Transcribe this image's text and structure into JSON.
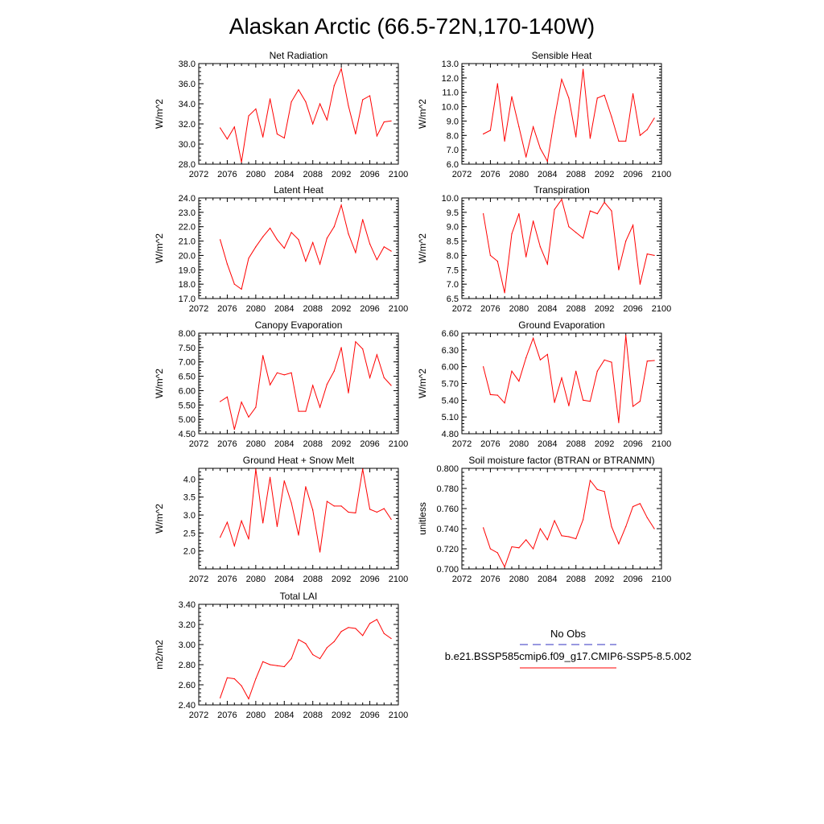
{
  "title": "Alaskan Arctic (66.5-72N,170-140W)",
  "legend": {
    "entries": [
      {
        "label": "No Obs",
        "color": "#3030c0",
        "dash": true
      },
      {
        "label": "b.e21.BSSP585cmip6.f09_g17.CMIP6-SSP5-8.5.002",
        "color": "#ff0000",
        "dash": false
      }
    ]
  },
  "chart_data": [
    {
      "type": "line",
      "title": "Net Radiation",
      "ylabel": "W/m^2",
      "xlim": [
        2072,
        2100
      ],
      "xticks": [
        "2072",
        "2076",
        "2080",
        "2084",
        "2088",
        "2092",
        "2096",
        "2100"
      ],
      "ylim": [
        28.0,
        38.0
      ],
      "yticks": [
        "28.0",
        "30.0",
        "32.0",
        "34.0",
        "36.0",
        "38.0"
      ],
      "color": "#ff0000",
      "x": [
        2075,
        2076,
        2077,
        2078,
        2079,
        2080,
        2081,
        2082,
        2083,
        2084,
        2085,
        2086,
        2087,
        2088,
        2089,
        2090,
        2091,
        2092,
        2093,
        2094,
        2095,
        2096,
        2097,
        2098,
        2099
      ],
      "values": [
        31.6,
        30.5,
        31.7,
        28.2,
        32.8,
        33.5,
        30.7,
        34.5,
        31.0,
        30.6,
        34.2,
        35.4,
        34.2,
        32.0,
        34.0,
        32.4,
        35.8,
        37.5,
        33.8,
        31.0,
        34.4,
        34.8,
        30.8,
        32.2,
        32.3
      ]
    },
    {
      "type": "line",
      "title": "Sensible Heat",
      "ylabel": "W/m^2",
      "xlim": [
        2072,
        2100
      ],
      "xticks": [
        "2072",
        "2076",
        "2080",
        "2084",
        "2088",
        "2092",
        "2096",
        "2100"
      ],
      "ylim": [
        6.0,
        13.0
      ],
      "yticks": [
        "6.0",
        "7.0",
        "8.0",
        "9.0",
        "10.0",
        "11.0",
        "12.0",
        "13.0"
      ],
      "color": "#ff0000",
      "x": [
        2075,
        2076,
        2077,
        2078,
        2079,
        2080,
        2081,
        2082,
        2083,
        2084,
        2085,
        2086,
        2087,
        2088,
        2089,
        2090,
        2091,
        2092,
        2093,
        2094,
        2095,
        2096,
        2097,
        2098,
        2099
      ],
      "values": [
        8.1,
        8.35,
        11.6,
        7.6,
        10.7,
        8.6,
        6.5,
        8.6,
        7.1,
        6.2,
        9.2,
        11.9,
        10.6,
        7.9,
        12.6,
        7.8,
        10.6,
        10.8,
        9.3,
        7.6,
        7.6,
        10.9,
        8.0,
        8.4,
        9.2
      ]
    },
    {
      "type": "line",
      "title": "Latent Heat",
      "ylabel": "W/m^2",
      "xlim": [
        2072,
        2100
      ],
      "xticks": [
        "2072",
        "2076",
        "2080",
        "2084",
        "2088",
        "2092",
        "2096",
        "2100"
      ],
      "ylim": [
        17.0,
        24.0
      ],
      "yticks": [
        "17.0",
        "18.0",
        "19.0",
        "20.0",
        "21.0",
        "22.0",
        "23.0",
        "24.0"
      ],
      "color": "#ff0000",
      "x": [
        2075,
        2076,
        2077,
        2078,
        2079,
        2080,
        2081,
        2082,
        2083,
        2084,
        2085,
        2086,
        2087,
        2088,
        2089,
        2090,
        2091,
        2092,
        2093,
        2094,
        2095,
        2096,
        2097,
        2098,
        2099
      ],
      "values": [
        21.1,
        19.4,
        18.0,
        17.65,
        19.8,
        20.6,
        21.3,
        21.9,
        21.1,
        20.5,
        21.6,
        21.1,
        19.6,
        20.9,
        19.4,
        21.2,
        22.0,
        23.5,
        21.5,
        20.2,
        22.5,
        20.8,
        19.7,
        20.6,
        20.3
      ]
    },
    {
      "type": "line",
      "title": "Transpiration",
      "ylabel": "W/m^2",
      "xlim": [
        2072,
        2100
      ],
      "xticks": [
        "2072",
        "2076",
        "2080",
        "2084",
        "2088",
        "2092",
        "2096",
        "2100"
      ],
      "ylim": [
        6.5,
        10.0
      ],
      "yticks": [
        "6.5",
        "7.0",
        "7.5",
        "8.0",
        "8.5",
        "9.0",
        "9.5",
        "10.0"
      ],
      "color": "#ff0000",
      "x": [
        2075,
        2076,
        2077,
        2078,
        2079,
        2080,
        2081,
        2082,
        2083,
        2084,
        2085,
        2086,
        2087,
        2088,
        2089,
        2090,
        2091,
        2092,
        2093,
        2094,
        2095,
        2096,
        2097,
        2098,
        2099
      ],
      "values": [
        9.45,
        8.0,
        7.8,
        6.7,
        8.75,
        9.45,
        7.95,
        9.2,
        8.3,
        7.7,
        9.6,
        9.95,
        9.0,
        8.8,
        8.6,
        9.55,
        9.45,
        9.85,
        9.55,
        7.5,
        8.5,
        9.05,
        7.0,
        8.05,
        8.0
      ]
    },
    {
      "type": "line",
      "title": "Canopy Evaporation",
      "ylabel": "W/m^2",
      "xlim": [
        2072,
        2100
      ],
      "xticks": [
        "2072",
        "2076",
        "2080",
        "2084",
        "2088",
        "2092",
        "2096",
        "2100"
      ],
      "ylim": [
        4.5,
        8.0
      ],
      "yticks": [
        "4.50",
        "5.00",
        "5.50",
        "6.00",
        "6.50",
        "7.00",
        "7.50",
        "8.00"
      ],
      "color": "#ff0000",
      "x": [
        2075,
        2076,
        2077,
        2078,
        2079,
        2080,
        2081,
        2082,
        2083,
        2084,
        2085,
        2086,
        2087,
        2088,
        2089,
        2090,
        2091,
        2092,
        2093,
        2094,
        2095,
        2096,
        2097,
        2098,
        2099
      ],
      "values": [
        5.62,
        5.78,
        4.65,
        5.6,
        5.08,
        5.42,
        7.22,
        6.2,
        6.62,
        6.55,
        6.62,
        5.28,
        5.28,
        6.18,
        5.42,
        6.22,
        6.68,
        7.5,
        5.92,
        7.7,
        7.45,
        6.45,
        7.25,
        6.45,
        6.18
      ]
    },
    {
      "type": "line",
      "title": "Ground Evaporation",
      "ylabel": "W/m^2",
      "xlim": [
        2072,
        2100
      ],
      "xticks": [
        "2072",
        "2076",
        "2080",
        "2084",
        "2088",
        "2092",
        "2096",
        "2100"
      ],
      "ylim": [
        4.8,
        6.6
      ],
      "yticks": [
        "4.80",
        "5.10",
        "5.40",
        "5.70",
        "6.00",
        "6.30",
        "6.60"
      ],
      "color": "#ff0000",
      "x": [
        2075,
        2076,
        2077,
        2078,
        2079,
        2080,
        2081,
        2082,
        2083,
        2084,
        2085,
        2086,
        2087,
        2088,
        2089,
        2090,
        2091,
        2092,
        2093,
        2094,
        2095,
        2096,
        2097,
        2098,
        2099
      ],
      "values": [
        6.0,
        5.5,
        5.49,
        5.35,
        5.92,
        5.74,
        6.16,
        6.51,
        6.12,
        6.22,
        5.36,
        5.8,
        5.3,
        5.92,
        5.4,
        5.38,
        5.92,
        6.12,
        6.08,
        5.0,
        6.56,
        5.29,
        5.38,
        6.1,
        6.11
      ]
    },
    {
      "type": "line",
      "title": "Ground Heat + Snow Melt",
      "ylabel": "W/m^2",
      "xlim": [
        2072,
        2100
      ],
      "xticks": [
        "2072",
        "2076",
        "2080",
        "2084",
        "2088",
        "2092",
        "2096",
        "2100"
      ],
      "ylim": [
        1.5,
        4.3
      ],
      "yticks": [
        "2.0",
        "2.5",
        "3.0",
        "3.5",
        "4.0"
      ],
      "color": "#ff0000",
      "x": [
        2075,
        2076,
        2077,
        2078,
        2079,
        2080,
        2081,
        2082,
        2083,
        2084,
        2085,
        2086,
        2087,
        2088,
        2089,
        2090,
        2091,
        2092,
        2093,
        2094,
        2095,
        2096,
        2097,
        2098,
        2099
      ],
      "values": [
        2.38,
        2.8,
        2.14,
        2.84,
        2.33,
        4.28,
        2.78,
        4.05,
        2.68,
        3.95,
        3.34,
        2.44,
        3.79,
        3.14,
        1.97,
        3.38,
        3.25,
        3.25,
        3.08,
        3.06,
        4.28,
        3.16,
        3.08,
        3.18,
        2.88
      ]
    },
    {
      "type": "line",
      "title": "Soil moisture factor (BTRAN or BTRANMN)",
      "ylabel": "unitless",
      "xlim": [
        2072,
        2100
      ],
      "xticks": [
        "2072",
        "2076",
        "2080",
        "2084",
        "2088",
        "2092",
        "2096",
        "2100"
      ],
      "ylim": [
        0.7,
        0.8
      ],
      "yticks": [
        "0.700",
        "0.720",
        "0.740",
        "0.760",
        "0.780",
        "0.800"
      ],
      "color": "#ff0000",
      "x": [
        2075,
        2076,
        2077,
        2078,
        2079,
        2080,
        2081,
        2082,
        2083,
        2084,
        2085,
        2086,
        2087,
        2088,
        2089,
        2090,
        2091,
        2092,
        2093,
        2094,
        2095,
        2096,
        2097,
        2098,
        2099
      ],
      "values": [
        0.741,
        0.72,
        0.716,
        0.702,
        0.722,
        0.721,
        0.729,
        0.72,
        0.74,
        0.729,
        0.748,
        0.733,
        0.732,
        0.73,
        0.749,
        0.788,
        0.779,
        0.777,
        0.742,
        0.725,
        0.742,
        0.762,
        0.765,
        0.751,
        0.74
      ]
    },
    {
      "type": "line",
      "title": "Total LAI",
      "ylabel": "m2/m2",
      "xlim": [
        2072,
        2100
      ],
      "xticks": [
        "2072",
        "2076",
        "2080",
        "2084",
        "2088",
        "2092",
        "2096",
        "2100"
      ],
      "ylim": [
        2.4,
        3.4
      ],
      "yticks": [
        "2.40",
        "2.60",
        "2.80",
        "3.00",
        "3.20",
        "3.40"
      ],
      "color": "#ff0000",
      "x": [
        2075,
        2076,
        2077,
        2078,
        2079,
        2080,
        2081,
        2082,
        2083,
        2084,
        2085,
        2086,
        2087,
        2088,
        2089,
        2090,
        2091,
        2092,
        2093,
        2094,
        2095,
        2096,
        2097,
        2098,
        2099
      ],
      "values": [
        2.47,
        2.67,
        2.66,
        2.59,
        2.46,
        2.66,
        2.83,
        2.8,
        2.79,
        2.78,
        2.86,
        3.05,
        3.01,
        2.9,
        2.86,
        2.97,
        3.03,
        3.13,
        3.17,
        3.16,
        3.09,
        3.21,
        3.25,
        3.11,
        3.06
      ]
    }
  ]
}
